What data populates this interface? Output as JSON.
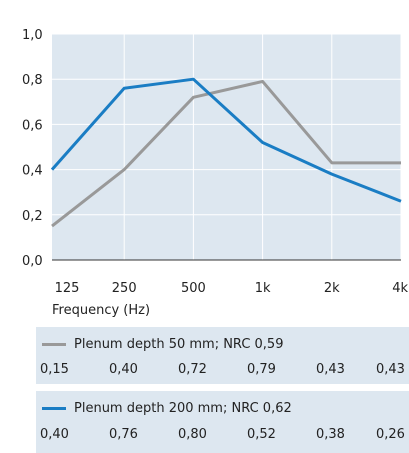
{
  "chart_data": {
    "type": "line",
    "title": "",
    "xlabel": "Frequency (Hz)",
    "ylabel": "",
    "categories": [
      "125",
      "250",
      "500",
      "1k",
      "2k",
      "4k"
    ],
    "yticks": [
      "0,0",
      "0,2",
      "0,4",
      "0,6",
      "0,8",
      "1,0"
    ],
    "ylim": [
      0,
      1.0
    ],
    "grid": true,
    "series": [
      {
        "name": "Plenum depth 50 mm; NRC 0,59",
        "color": "#999999",
        "values": [
          0.15,
          0.4,
          0.72,
          0.79,
          0.43,
          0.43
        ],
        "value_labels": [
          "0,15",
          "0,40",
          "0,72",
          "0,79",
          "0,43",
          "0,43"
        ]
      },
      {
        "name": "Plenum depth 200 mm; NRC 0,62",
        "color": "#1a7dc4",
        "values": [
          0.4,
          0.76,
          0.8,
          0.52,
          0.38,
          0.26
        ],
        "value_labels": [
          "0,40",
          "0,76",
          "0,80",
          "0,52",
          "0,38",
          "0,26"
        ]
      }
    ]
  }
}
